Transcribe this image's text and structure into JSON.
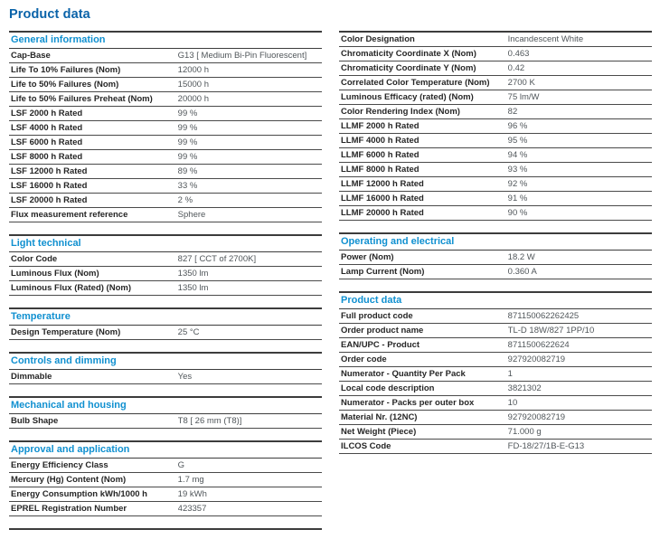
{
  "page": {
    "title": "Product data"
  },
  "colors": {
    "title_blue": "#0a63a9",
    "section_blue": "#1090d0",
    "rule_dark": "#3c3c3c",
    "rule_row": "#4a4a4a",
    "label_text": "#262626",
    "value_text": "#50565a",
    "page_bg": "#ffffff"
  },
  "left_sections": [
    {
      "id": "general-information",
      "title": "General information",
      "rows": [
        {
          "label": "Cap-Base",
          "value": "G13 [ Medium Bi-Pin Fluorescent]"
        },
        {
          "label": "Life To 10% Failures (Nom)",
          "value": "12000 h"
        },
        {
          "label": "Life to 50% Failures (Nom)",
          "value": "15000 h"
        },
        {
          "label": "Life to 50% Failures Preheat (Nom)",
          "value": "20000 h"
        },
        {
          "label": "LSF 2000 h Rated",
          "value": "99 %"
        },
        {
          "label": "LSF 4000 h Rated",
          "value": "99 %"
        },
        {
          "label": "LSF 6000 h Rated",
          "value": "99 %"
        },
        {
          "label": "LSF 8000 h Rated",
          "value": "99 %"
        },
        {
          "label": "LSF 12000 h Rated",
          "value": "89 %"
        },
        {
          "label": "LSF 16000 h Rated",
          "value": "33 %"
        },
        {
          "label": "LSF 20000 h Rated",
          "value": "2 %"
        },
        {
          "label": "Flux measurement reference",
          "value": "Sphere"
        }
      ]
    },
    {
      "id": "light-technical",
      "title": "Light technical",
      "rows": [
        {
          "label": "Color Code",
          "value": "827 [ CCT of 2700K]"
        },
        {
          "label": "Luminous Flux (Nom)",
          "value": "1350 lm"
        },
        {
          "label": "Luminous Flux (Rated) (Nom)",
          "value": "1350 lm"
        }
      ]
    },
    {
      "id": "temperature",
      "title": "Temperature",
      "rows": [
        {
          "label": "Design Temperature (Nom)",
          "value": "25 °C"
        }
      ]
    },
    {
      "id": "controls-and-dimming",
      "title": "Controls and dimming",
      "rows": [
        {
          "label": "Dimmable",
          "value": "Yes"
        }
      ]
    },
    {
      "id": "mechanical-and-housing",
      "title": "Mechanical and housing",
      "rows": [
        {
          "label": "Bulb Shape",
          "value": "T8 [ 26 mm (T8)]"
        }
      ]
    },
    {
      "id": "approval-and-application",
      "title": "Approval and application",
      "rows": [
        {
          "label": "Energy Efficiency Class",
          "value": "G"
        },
        {
          "label": "Mercury (Hg) Content (Nom)",
          "value": "1.7 mg"
        },
        {
          "label": "Energy Consumption kWh/1000 h",
          "value": "19 kWh"
        },
        {
          "label": "EPREL Registration Number",
          "value": "423357"
        }
      ]
    }
  ],
  "right_sections": [
    {
      "id": "general-information-continued",
      "title": "",
      "rows": [
        {
          "label": "Color Designation",
          "value": "Incandescent White"
        },
        {
          "label": "Chromaticity Coordinate X (Nom)",
          "value": "0.463"
        },
        {
          "label": "Chromaticity Coordinate Y (Nom)",
          "value": "0.42"
        },
        {
          "label": "Correlated Color Temperature (Nom)",
          "value": "2700 K"
        },
        {
          "label": "Luminous Efficacy (rated) (Nom)",
          "value": "75 lm/W"
        },
        {
          "label": "Color Rendering Index (Nom)",
          "value": "82"
        },
        {
          "label": "LLMF 2000 h Rated",
          "value": "96 %"
        },
        {
          "label": "LLMF 4000 h Rated",
          "value": "95 %"
        },
        {
          "label": "LLMF 6000 h Rated",
          "value": "94 %"
        },
        {
          "label": "LLMF 8000 h Rated",
          "value": "93 %"
        },
        {
          "label": "LLMF 12000 h Rated",
          "value": "92 %"
        },
        {
          "label": "LLMF 16000 h Rated",
          "value": "91 %"
        },
        {
          "label": "LLMF 20000 h Rated",
          "value": "90 %"
        }
      ]
    },
    {
      "id": "operating-and-electrical",
      "title": "Operating and electrical",
      "rows": [
        {
          "label": "Power (Nom)",
          "value": "18.2 W"
        },
        {
          "label": "Lamp Current (Nom)",
          "value": "0.360 A"
        }
      ]
    },
    {
      "id": "product-data",
      "title": "Product data",
      "rows": [
        {
          "label": "Full product code",
          "value": "871150062262425"
        },
        {
          "label": "Order product name",
          "value": "TL-D 18W/827 1PP/10"
        },
        {
          "label": "EAN/UPC - Product",
          "value": "8711500622624"
        },
        {
          "label": "Order code",
          "value": "927920082719"
        },
        {
          "label": "Numerator - Quantity Per Pack",
          "value": "1"
        },
        {
          "label": "Local code description",
          "value": "3821302"
        },
        {
          "label": "Numerator - Packs per outer box",
          "value": "10"
        },
        {
          "label": "Material Nr. (12NC)",
          "value": "927920082719"
        },
        {
          "label": "Net Weight (Piece)",
          "value": "71.000 g"
        },
        {
          "label": "ILCOS Code",
          "value": "FD-18/27/1B-E-G13"
        }
      ]
    }
  ]
}
